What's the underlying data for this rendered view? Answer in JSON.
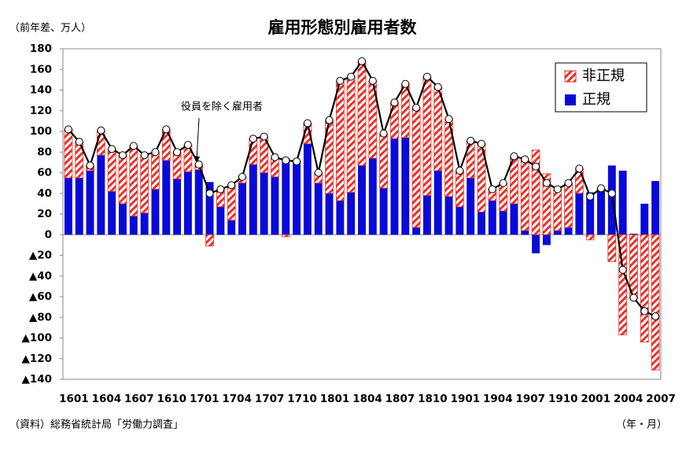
{
  "chart_data": {
    "type": "bar",
    "stacked": true,
    "title": "雇用形態別雇用者数",
    "y_unit": "（前年差、万人）",
    "x_unit": "（年・月）",
    "source": "（資料）総務省統計局「労働力調査」",
    "categories": [
      "1601",
      null,
      null,
      "1604",
      null,
      null,
      "1607",
      null,
      null,
      "1610",
      null,
      null,
      "1701",
      null,
      null,
      "1704",
      null,
      null,
      "1707",
      null,
      null,
      "1710",
      null,
      null,
      "1801",
      null,
      null,
      "1804",
      null,
      null,
      "1807",
      null,
      null,
      "1810",
      null,
      null,
      "1901",
      null,
      null,
      "1904",
      null,
      null,
      "1907",
      null,
      null,
      "1910",
      null,
      null,
      "2001",
      null,
      null,
      "2004",
      null,
      null,
      "2007"
    ],
    "series": [
      {
        "name": "正規",
        "color": "#0a0ad8",
        "values": [
          55,
          55,
          62,
          77,
          42,
          30,
          18,
          21,
          44,
          72,
          54,
          61,
          63,
          51,
          27,
          14,
          50,
          68,
          60,
          56,
          74,
          70,
          88,
          50,
          40,
          33,
          41,
          67,
          74,
          45,
          93,
          94,
          7,
          38,
          62,
          37,
          27,
          55,
          22,
          33,
          23,
          30,
          4,
          -18,
          -10,
          4,
          7,
          40,
          41,
          42,
          67,
          62,
          1,
          30,
          52
        ]
      },
      {
        "name": "非正規",
        "color": "#e8322a",
        "pattern": "hatch",
        "values": [
          47,
          35,
          5,
          24,
          41,
          47,
          68,
          56,
          36,
          30,
          26,
          26,
          5,
          -11,
          17,
          34,
          6,
          25,
          35,
          19,
          -2,
          1,
          20,
          10,
          71,
          116,
          112,
          101,
          75,
          53,
          35,
          52,
          116,
          115,
          81,
          75,
          35,
          36,
          66,
          11,
          27,
          46,
          69,
          82,
          59,
          40,
          43,
          24,
          -5,
          3,
          -26,
          -97,
          -62,
          -104,
          -131
        ]
      }
    ],
    "total": {
      "name": "役員を除く雇用者",
      "color": "#000000",
      "values": [
        102,
        90,
        67,
        101,
        83,
        77,
        86,
        77,
        80,
        102,
        80,
        87,
        68,
        40,
        44,
        48,
        56,
        93,
        95,
        75,
        72,
        71,
        108,
        60,
        111,
        149,
        153,
        168,
        149,
        98,
        128,
        146,
        123,
        153,
        143,
        112,
        62,
        91,
        88,
        44,
        50,
        76,
        73,
        66,
        50,
        44,
        50,
        64,
        37,
        45,
        40,
        -34,
        -61,
        -74,
        -79
      ]
    },
    "ylim": [
      -140,
      180
    ],
    "yticks": [
      {
        "value": -140,
        "label": "▲140"
      },
      {
        "value": -120,
        "label": "▲120"
      },
      {
        "value": -100,
        "label": "▲100"
      },
      {
        "value": -80,
        "label": "▲80"
      },
      {
        "value": -60,
        "label": "▲60"
      },
      {
        "value": -40,
        "label": "▲40"
      },
      {
        "value": -20,
        "label": "▲20"
      },
      0,
      20,
      40,
      60,
      80,
      100,
      120,
      140,
      160,
      180
    ],
    "grid": false,
    "legend": "top-right"
  }
}
